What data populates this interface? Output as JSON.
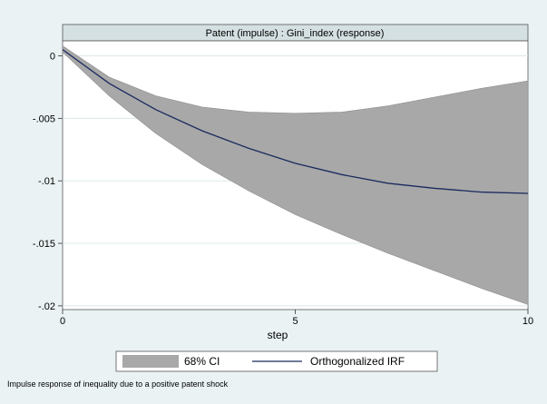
{
  "chart_data": {
    "type": "line",
    "panel_title": "Patent (impulse) : Gini_index (response)",
    "xlabel": "step",
    "ylabel": "",
    "xlim": [
      0,
      10
    ],
    "ylim": [
      -0.0203,
      0.0012
    ],
    "x_ticks": [
      0,
      5,
      10
    ],
    "y_ticks": [
      0,
      -0.005,
      -0.01,
      -0.015,
      -0.02
    ],
    "y_tick_labels": [
      "0",
      "-.005",
      "-.01",
      "-.015",
      "-.02"
    ],
    "grid": true,
    "x": [
      0,
      1,
      2,
      3,
      4,
      5,
      6,
      7,
      8,
      9,
      10
    ],
    "series": [
      {
        "name": "Orthogonalized IRF",
        "values": [
          0.0005,
          -0.0022,
          -0.0043,
          -0.006,
          -0.0074,
          -0.0086,
          -0.0095,
          -0.0102,
          -0.0106,
          -0.0109,
          -0.011
        ]
      }
    ],
    "ci_band": {
      "name": "68% CI",
      "upper": [
        0.0008,
        -0.0017,
        -0.0032,
        -0.0041,
        -0.0045,
        -0.0046,
        -0.0045,
        -0.004,
        -0.0033,
        -0.0026,
        -0.002
      ],
      "lower": [
        0.0003,
        -0.0032,
        -0.0062,
        -0.0087,
        -0.0108,
        -0.0127,
        -0.0143,
        -0.0158,
        -0.0172,
        -0.0186,
        -0.0199
      ]
    },
    "legend_position": "bottom",
    "caption": "Impulse response of inequality due to a positive patent shock"
  },
  "colors": {
    "background": "#eaf2f3",
    "plot_bg": "#ffffff",
    "band": "#a8a8a8",
    "line": "#1a2a5e",
    "grid": "#dde8ea"
  }
}
